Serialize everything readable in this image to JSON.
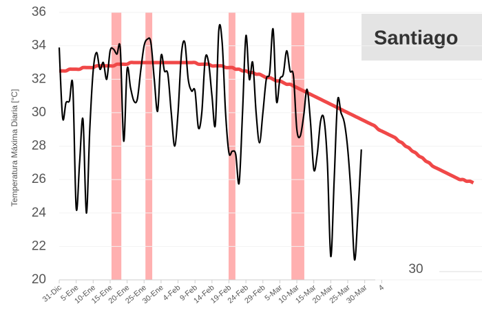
{
  "chart_data": {
    "type": "line",
    "y_label": "Temperatura Máxima Diaria [°C]",
    "categories": [
      "31-Dic",
      null,
      null,
      null,
      null,
      "5-Ene",
      null,
      null,
      null,
      null,
      "10-Ene",
      null,
      null,
      null,
      null,
      "15-Ene",
      null,
      null,
      null,
      null,
      "20-Ene",
      null,
      null,
      null,
      null,
      "25-Ene",
      null,
      null,
      null,
      null,
      "30-Ene",
      null,
      null,
      null,
      null,
      "4-Feb",
      null,
      null,
      null,
      null,
      "9-Feb",
      null,
      null,
      null,
      null,
      "14-Feb",
      null,
      null,
      null,
      null,
      "19-Feb",
      null,
      null,
      null,
      null,
      "24-Feb",
      null,
      null,
      null,
      null,
      "29-Feb",
      null,
      null,
      null,
      null,
      "5-Mar",
      null,
      null,
      null,
      null,
      "10-Mar",
      null,
      null,
      null,
      null,
      "15-Mar",
      null,
      null,
      null,
      null,
      "20-Mar",
      null,
      null,
      null,
      null,
      "25-Mar",
      null,
      null,
      null,
      null,
      "30-Mar",
      null,
      null,
      null,
      null,
      "4",
      null,
      null,
      null,
      null,
      null,
      null,
      null,
      null,
      null,
      null,
      null,
      null,
      null,
      null,
      null,
      null,
      null,
      null,
      null,
      null,
      null,
      null,
      null,
      null,
      null,
      null,
      null
    ],
    "series": [
      {
        "color": "#f04848",
        "values": [
          32.5,
          32.5,
          32.5,
          32.6,
          32.6,
          32.6,
          32.6,
          32.7,
          32.7,
          32.7,
          32.7,
          32.8,
          32.8,
          32.8,
          32.8,
          32.8,
          32.8,
          32.9,
          32.9,
          32.9,
          32.9,
          33.0,
          33.0,
          33.0,
          33.0,
          33.0,
          33.0,
          33.0,
          33.0,
          33.0,
          33.0,
          33.0,
          33.0,
          33.0,
          33.0,
          33.0,
          33.0,
          33.0,
          33.0,
          33.0,
          33.0,
          32.9,
          32.9,
          32.9,
          32.9,
          32.8,
          32.8,
          32.8,
          32.8,
          32.7,
          32.7,
          32.7,
          32.6,
          32.6,
          32.5,
          32.5,
          32.4,
          32.4,
          32.3,
          32.3,
          32.2,
          32.1,
          32.1,
          32.0,
          31.9,
          31.9,
          31.8,
          31.7,
          31.7,
          31.6,
          31.5,
          31.4,
          31.3,
          31.2,
          31.1,
          31.0,
          30.9,
          30.8,
          30.7,
          30.6,
          30.5,
          30.4,
          30.3,
          30.2,
          30.1,
          30.0,
          29.9,
          29.8,
          29.7,
          29.6,
          29.5,
          29.4,
          29.3,
          29.2,
          29.0,
          28.9,
          28.8,
          28.7,
          28.6,
          28.5,
          28.3,
          28.2,
          28.0,
          27.9,
          27.7,
          27.6,
          27.4,
          27.3,
          27.1,
          27.0,
          26.8,
          26.7,
          26.6,
          26.5,
          26.4,
          26.3,
          26.2,
          26.1,
          26.0,
          26.0,
          25.9,
          25.9,
          25.8
        ]
      },
      {
        "color": "#000000",
        "values": [
          33.9,
          29.7,
          30.6,
          30.7,
          31.6,
          24.3,
          27.0,
          29.6,
          24.0,
          29.0,
          32.5,
          33.6,
          32.6,
          33.0,
          32.0,
          33.7,
          33.8,
          33.5,
          33.8,
          28.3,
          32.6,
          31.5,
          30.7,
          30.8,
          32.5,
          34.0,
          34.4,
          34.2,
          32.0,
          30.1,
          33.4,
          32.5,
          32.3,
          30.0,
          28.0,
          30.0,
          33.5,
          34.2,
          32.0,
          31.3,
          31.3,
          29.1,
          30.0,
          33.2,
          33.0,
          31.0,
          29.3,
          34.9,
          34.2,
          30.0,
          27.6,
          27.7,
          27.5,
          25.8,
          30.0,
          34.6,
          32.0,
          33.0,
          30.0,
          28.2,
          30.0,
          32.0,
          32.4,
          35.0,
          30.7,
          32.0,
          32.3,
          33.7,
          32.5,
          32.2,
          29.0,
          28.6,
          29.8,
          31.4,
          29.5,
          26.6,
          27.5,
          29.5,
          29.6,
          27.0,
          21.4,
          26.0,
          30.7,
          30.0,
          29.4,
          27.8,
          25.0,
          21.2,
          24.0,
          27.8,
          null,
          null,
          null,
          null,
          null,
          null,
          null,
          null,
          null,
          null,
          null,
          null,
          null,
          null,
          null,
          null,
          null,
          null,
          null,
          null,
          null,
          null,
          null,
          null,
          null,
          null,
          null,
          null,
          null,
          null,
          null,
          null,
          null
        ]
      }
    ],
    "highlight_ranges": [
      [
        15.4,
        18.3
      ],
      [
        25.4,
        27.4
      ],
      [
        49.9,
        51.9
      ],
      [
        68.4,
        72.2
      ]
    ],
    "highlight_color": "#ffb0b0",
    "ylim": [
      20,
      36
    ],
    "yticks": [
      20,
      22,
      24,
      26,
      28,
      30,
      32,
      34,
      36
    ],
    "grid": true
  },
  "overlay": {
    "title": "Santiago",
    "axis_label": "30"
  }
}
